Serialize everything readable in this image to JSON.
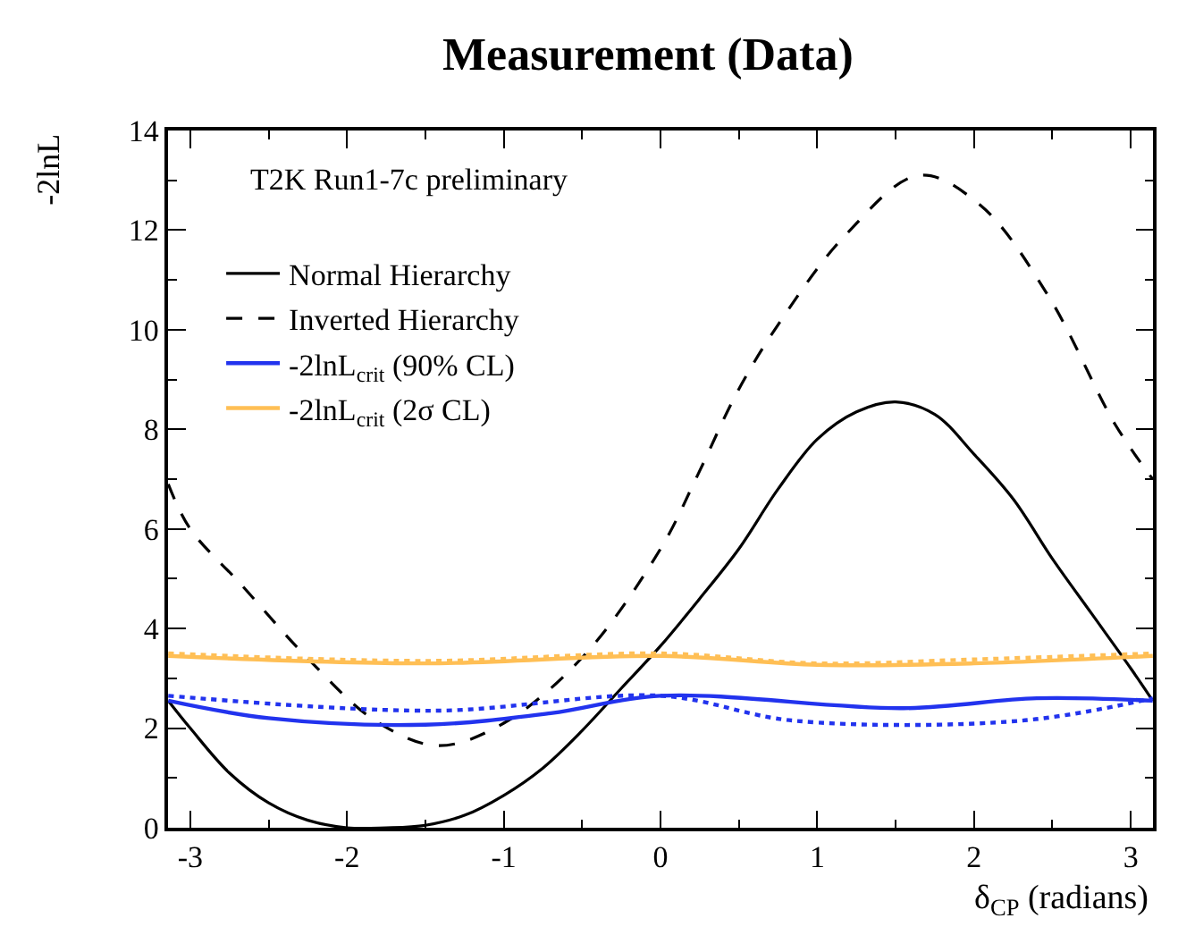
{
  "chart_data": {
    "type": "line",
    "title": "Measurement (Data)",
    "xlabel": "δ$_{CP}$ (radians)",
    "ylabel": "-2lnL",
    "annotations": [
      "T2K Run1-7c preliminary"
    ],
    "series": [
      {
        "name": "Normal Hierarchy",
        "color": "#000000",
        "line_style": "solid",
        "x": [
          -3.14,
          -3.0,
          -2.75,
          -2.5,
          -2.25,
          -2.0,
          -1.75,
          -1.5,
          -1.25,
          -1.0,
          -0.75,
          -0.5,
          -0.25,
          0,
          0.25,
          0.5,
          0.75,
          1.0,
          1.25,
          1.5,
          1.75,
          2.0,
          2.25,
          2.5,
          2.75,
          3.0,
          3.14
        ],
        "values": [
          2.55,
          2.0,
          1.1,
          0.5,
          0.15,
          0.0,
          0.0,
          0.05,
          0.25,
          0.65,
          1.2,
          1.95,
          2.8,
          3.65,
          4.6,
          5.6,
          6.8,
          7.8,
          8.35,
          8.55,
          8.3,
          7.5,
          6.6,
          5.4,
          4.3,
          3.2,
          2.55
        ]
      },
      {
        "name": "Inverted Hierarchy",
        "color": "#000000",
        "line_style": "dashed",
        "x": [
          -3.14,
          -3.0,
          -2.68,
          -2.25,
          -1.82,
          -1.42,
          -1.0,
          -0.49,
          0,
          0.24,
          0.49,
          0.75,
          1.18,
          1.65,
          2.04,
          2.47,
          2.9,
          3.14
        ],
        "values": [
          6.9,
          6.0,
          4.9,
          3.4,
          2.15,
          1.65,
          2.1,
          3.45,
          5.6,
          7.1,
          8.75,
          10.1,
          11.9,
          13.1,
          12.5,
          10.7,
          8.1,
          7.0
        ]
      },
      {
        "name": "-2lnL$_{crit}$ (90% CL)",
        "color": "#2233ee",
        "line_style": "solid",
        "x": [
          -3.14,
          -2.5,
          -1.5,
          -0.7,
          0,
          1.55,
          2.4,
          3.14
        ],
        "values": [
          2.55,
          2.2,
          2.07,
          2.3,
          2.65,
          2.4,
          2.6,
          2.55
        ]
      },
      {
        "color": "#2233ee",
        "line_style": "dotted",
        "x": [
          -3.14,
          -1.45,
          0,
          0.85,
          2.3,
          3.14
        ],
        "values": [
          2.65,
          2.35,
          2.65,
          2.15,
          2.15,
          2.6
        ]
      },
      {
        "name": "-2lnL$_{crit}$ (2σ CL)",
        "color": "#ffbf55",
        "line_style": "solid",
        "x": [
          -3.14,
          -1.5,
          0,
          1,
          2,
          3.14
        ],
        "values": [
          3.45,
          3.3,
          3.45,
          3.27,
          3.3,
          3.45
        ]
      },
      {
        "color": "#ffbf55",
        "line_style": "dotted",
        "x": [
          -3.14,
          -1.5,
          0,
          1,
          2,
          3.14
        ],
        "values": [
          3.5,
          3.35,
          3.5,
          3.3,
          3.38,
          3.5
        ]
      }
    ],
    "xlim": [
      -3.1416,
      3.1416
    ],
    "xticks": [
      -3,
      -2,
      -1,
      0,
      1,
      2,
      3
    ],
    "ylim": [
      0,
      14
    ],
    "yticks": [
      0,
      2,
      4,
      6,
      8,
      10,
      12,
      14
    ],
    "legend": "top left",
    "marker": "none"
  }
}
